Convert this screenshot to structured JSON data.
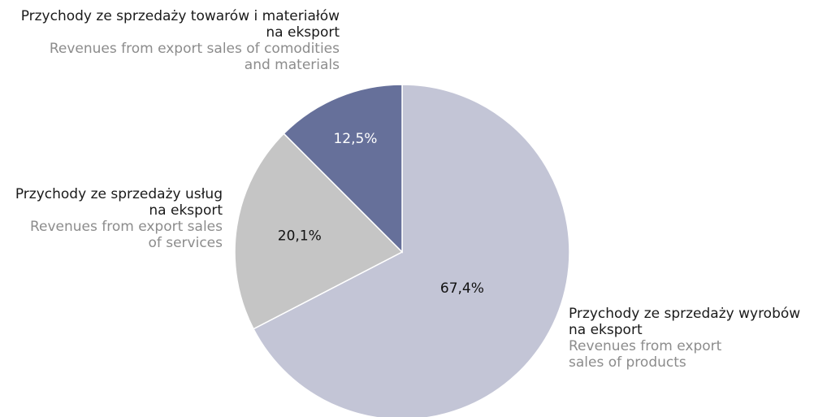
{
  "chart_data": {
    "type": "pie",
    "slices": [
      {
        "key": "products",
        "value": 67.4,
        "value_label": "67,4%",
        "label_pl": "Przychody ze sprzedaży wyrobów\n  na eksport",
        "label_en": "Revenues from export\nsales of products",
        "color": "#c3c5d6",
        "label_color": "#111111"
      },
      {
        "key": "services",
        "value": 20.1,
        "value_label": "20,1%",
        "label_pl": "Przychody ze sprzedaży usług\nna eksport",
        "label_en": "Revenues from export sales\nof services",
        "color": "#c5c5c5",
        "label_color": "#111111"
      },
      {
        "key": "goods",
        "value": 12.5,
        "value_label": "12,5%",
        "label_pl": "Przychody ze sprzedaży towarów i materiałów\nna eksport",
        "label_en": "Revenues from export sales of comodities\nand materials",
        "color": "#66709a",
        "label_color": "#ffffff"
      }
    ],
    "start_angle": "12 o'clock",
    "direction": "clockwise"
  }
}
